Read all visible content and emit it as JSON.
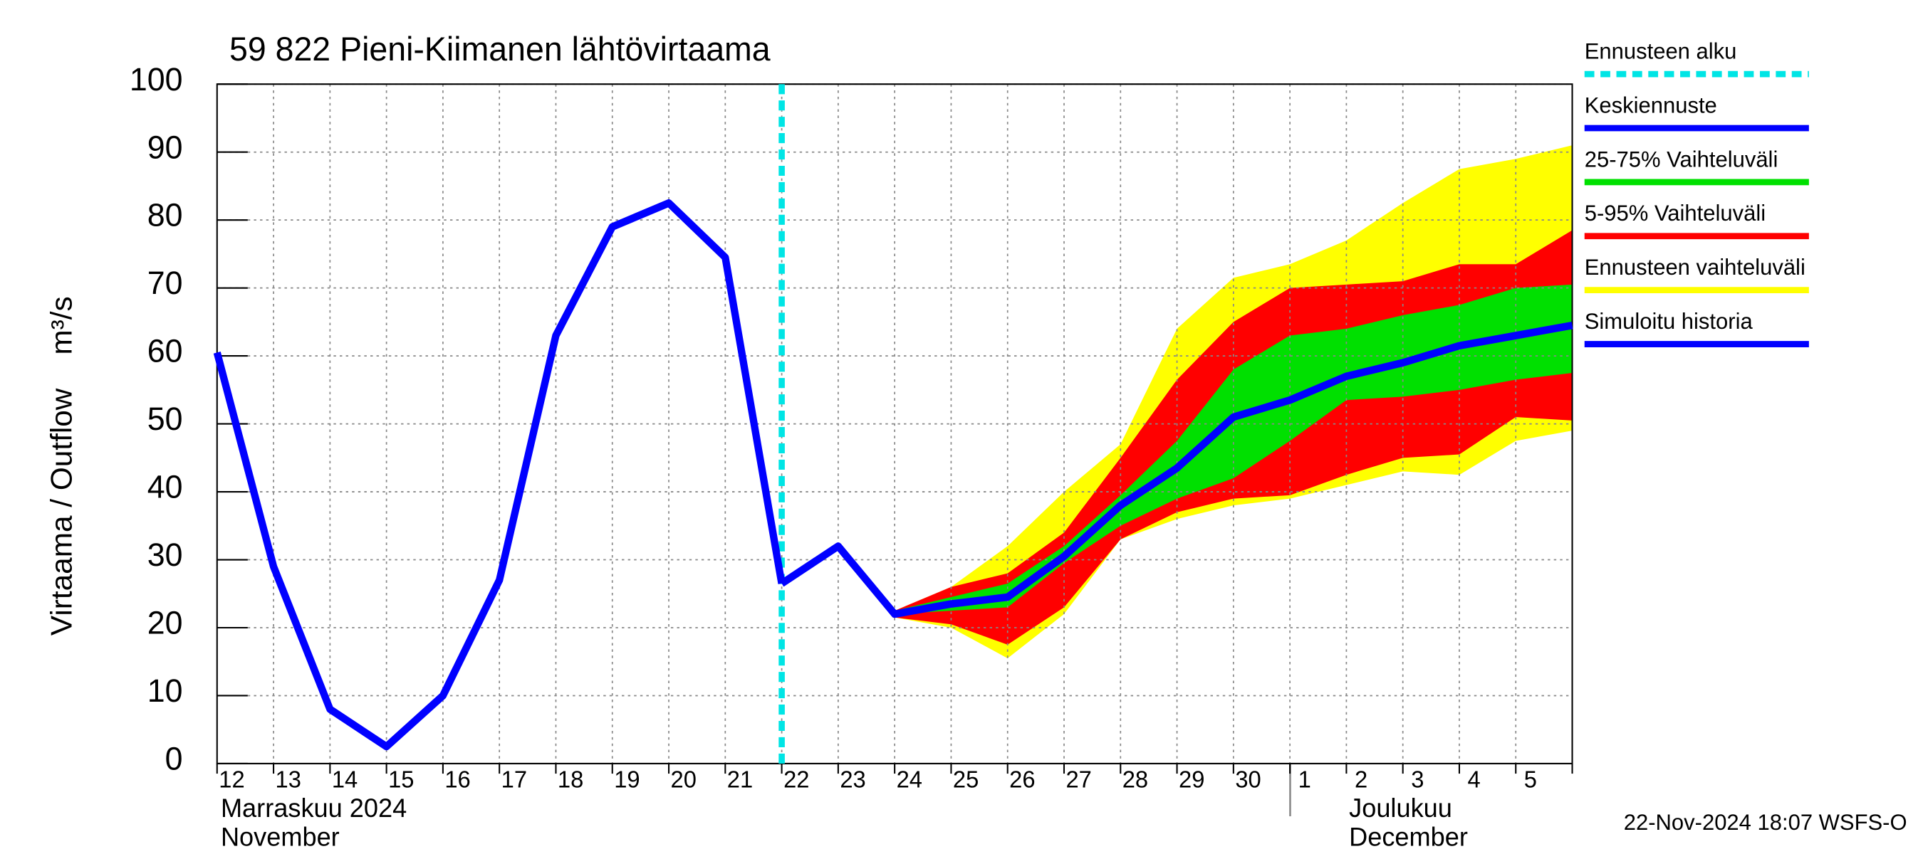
{
  "chart_data": {
    "type": "line",
    "title": "59 822 Pieni-Kiimanen lähtövirtaama",
    "y_label": "Virtaama / Outflow    m³/s",
    "month_labels": [
      "Marraskuu 2024",
      "November",
      "Joulukuu",
      "December"
    ],
    "footer": "22-Nov-2024 18:07 WSFS-O",
    "categories": [
      "12",
      "13",
      "14",
      "15",
      "16",
      "17",
      "18",
      "19",
      "20",
      "21",
      "22",
      "23",
      "24",
      "25",
      "26",
      "27",
      "28",
      "29",
      "30",
      "1",
      "2",
      "3",
      "4",
      "5",
      null
    ],
    "ylim": [
      0,
      100
    ],
    "yticks": [
      0,
      10,
      20,
      30,
      40,
      50,
      60,
      70,
      80,
      90,
      100
    ],
    "grid": true,
    "forecast_start": {
      "name": "Ennusteen alku",
      "color": "#00e5e5",
      "category": "22"
    },
    "bands": [
      {
        "name": "Ennusteen vaihteluväli",
        "color": "#ffff00",
        "upper": [
          null,
          null,
          null,
          null,
          null,
          null,
          null,
          null,
          null,
          null,
          null,
          null,
          22.5,
          26,
          32,
          40,
          47,
          64,
          71.5,
          73.5,
          77,
          82.5,
          87.5,
          89,
          91
        ],
        "lower": [
          null,
          null,
          null,
          null,
          null,
          null,
          null,
          null,
          null,
          null,
          null,
          null,
          21.5,
          20,
          15.5,
          22,
          33,
          36,
          38,
          39,
          41,
          43,
          42.5,
          47.5,
          49
        ]
      },
      {
        "name": "5-95% Vaihteluväli",
        "color": "#ff0000",
        "upper": [
          null,
          null,
          null,
          null,
          null,
          null,
          null,
          null,
          null,
          null,
          null,
          null,
          22.5,
          26,
          28,
          34,
          45,
          56.5,
          65,
          70,
          70.5,
          71,
          73.5,
          73.5,
          78.5
        ],
        "lower": [
          null,
          null,
          null,
          null,
          null,
          null,
          null,
          null,
          null,
          null,
          null,
          null,
          21.5,
          20.5,
          17.5,
          23,
          33,
          37,
          39,
          39.5,
          42.5,
          45,
          45.5,
          51,
          50.5
        ]
      },
      {
        "name": "25-75% Vaihteluväli",
        "color": "#00e000",
        "upper": [
          null,
          null,
          null,
          null,
          null,
          null,
          null,
          null,
          null,
          null,
          null,
          null,
          22.5,
          24.5,
          26.5,
          32,
          39.5,
          47.5,
          58,
          63,
          64,
          66,
          67.5,
          70,
          70.5
        ],
        "lower": [
          null,
          null,
          null,
          null,
          null,
          null,
          null,
          null,
          null,
          null,
          null,
          null,
          22,
          22.5,
          23,
          29.5,
          35,
          39,
          42,
          47.5,
          53.5,
          54,
          55,
          56.5,
          57.5
        ]
      }
    ],
    "series": [
      {
        "name": "Keskiennuste",
        "color": "#0000ff",
        "values": [
          null,
          null,
          null,
          null,
          null,
          null,
          null,
          null,
          null,
          null,
          26.5,
          32,
          22,
          23.5,
          24.5,
          30.5,
          38,
          43.5,
          51,
          53.5,
          57,
          59,
          61.5,
          63,
          64.5
        ]
      },
      {
        "name": "Simuloitu historia",
        "color": "#0000ff",
        "values": [
          60.5,
          29,
          8,
          2.5,
          10,
          27,
          63,
          79,
          82.5,
          74.5,
          26.5,
          null,
          null,
          null,
          null,
          null,
          null,
          null,
          null,
          null,
          null,
          null,
          null,
          null,
          null
        ]
      }
    ]
  }
}
